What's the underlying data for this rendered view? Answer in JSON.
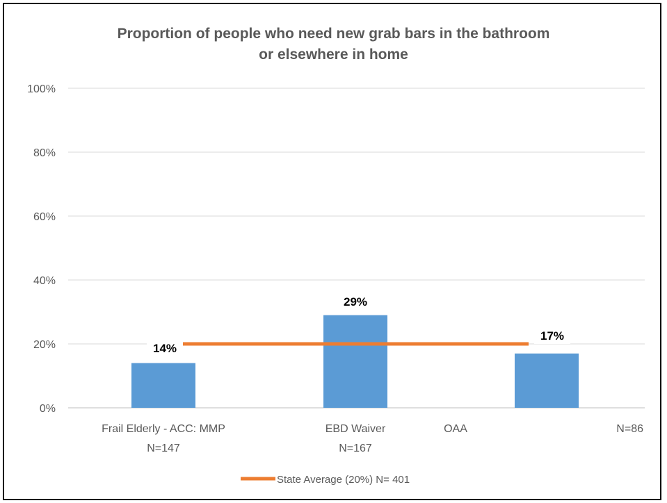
{
  "chart_data": {
    "type": "bar",
    "title": [
      "Proportion of people who need new grab bars in the bathroom",
      "or elsewhere in home"
    ],
    "categories": [
      [
        "Frail Elderly - ACC: MMP",
        "N=147"
      ],
      [
        "EBD Waiver",
        "N=167"
      ],
      [
        "OAA",
        "N=86"
      ]
    ],
    "values": [
      14,
      29,
      17
    ],
    "data_labels": [
      "14%",
      "29%",
      "17%"
    ],
    "ylim": [
      0,
      100
    ],
    "yticks": [
      "0%",
      "20%",
      "40%",
      "60%",
      "80%",
      "100%"
    ],
    "ytick_values": [
      0,
      20,
      40,
      60,
      80,
      100
    ],
    "reference_line": {
      "value": 20,
      "label": "State Average (20%) N= 401"
    },
    "grid": true,
    "legend": "bottom",
    "colors": {
      "bar": "#5b9bd5",
      "line": "#ed7d31",
      "grid": "#d9d9d9",
      "text": "#595959"
    }
  }
}
